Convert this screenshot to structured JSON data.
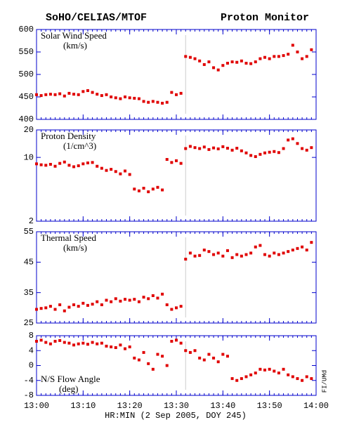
{
  "header": {
    "left": "SoHO/CELIAS/MTOF",
    "right": "Proton Monitor"
  },
  "time_axis": {
    "x": [
      "13:00",
      "13:01",
      "13:02",
      "13:03",
      "13:04",
      "13:05",
      "13:06",
      "13:07",
      "13:08",
      "13:09",
      "13:10",
      "13:11",
      "13:12",
      "13:13",
      "13:14",
      "13:15",
      "13:16",
      "13:17",
      "13:18",
      "13:19",
      "13:20",
      "13:21",
      "13:22",
      "13:23",
      "13:24",
      "13:25",
      "13:26",
      "13:27",
      "13:28",
      "13:29",
      "13:30",
      "13:31",
      "13:32",
      "13:33",
      "13:34",
      "13:35",
      "13:36",
      "13:37",
      "13:38",
      "13:39",
      "13:40",
      "13:41",
      "13:42",
      "13:43",
      "13:44",
      "13:45",
      "13:46",
      "13:47",
      "13:48",
      "13:49",
      "13:50",
      "13:51",
      "13:52",
      "13:53",
      "13:54",
      "13:55",
      "13:56",
      "13:57",
      "13:58",
      "13:59"
    ],
    "xlim": [
      "13:00",
      "14:00"
    ],
    "xticks": [
      "13:00",
      "13:10",
      "13:20",
      "13:30",
      "13:40",
      "13:50",
      "14:00"
    ],
    "xlabel": "HR:MIN (2 Sep 2005, DOY 245)",
    "event_line": "13:32"
  },
  "credit": "FI/UMd",
  "chart_data": [
    {
      "type": "scatter",
      "title": "Solar Wind Speed",
      "units": "(km/s)",
      "color": "#e00000",
      "ylim": [
        400,
        600
      ],
      "yticks": [
        400,
        450,
        500,
        550,
        600
      ],
      "values": [
        455,
        453,
        455,
        456,
        455,
        457,
        452,
        458,
        456,
        455,
        462,
        464,
        460,
        456,
        453,
        455,
        450,
        448,
        446,
        450,
        448,
        447,
        446,
        440,
        438,
        440,
        438,
        436,
        438,
        460,
        455,
        458,
        540,
        538,
        535,
        530,
        522,
        528,
        515,
        510,
        520,
        525,
        528,
        527,
        530,
        525,
        524,
        528,
        535,
        538,
        535,
        540,
        540,
        542,
        545,
        565,
        550,
        535,
        540,
        555
      ]
    },
    {
      "type": "scatter",
      "title": "Proton Density",
      "units": "(1/cm^3)",
      "color": "#e00000",
      "log_scale": true,
      "ylim": [
        2,
        20
      ],
      "yticks": [
        2,
        10,
        20
      ],
      "values": [
        8.5,
        8.3,
        8.2,
        8.4,
        8.0,
        8.6,
        8.9,
        8.2,
        7.9,
        8.1,
        8.5,
        8.7,
        8.8,
        8.0,
        7.6,
        7.2,
        7.4,
        7.0,
        6.6,
        7.1,
        6.5,
        4.5,
        4.3,
        4.6,
        4.2,
        4.5,
        4.7,
        4.4,
        9.5,
        8.8,
        9.2,
        8.6,
        12.5,
        13.2,
        12.8,
        12.5,
        13.0,
        12.2,
        12.7,
        12.4,
        13.1,
        12.6,
        12.0,
        12.6,
        11.8,
        11.2,
        10.5,
        10.2,
        10.8,
        11.2,
        11.4,
        11.6,
        11.3,
        12.5,
        15.5,
        16.0,
        14.2,
        12.5,
        12.0,
        12.8
      ]
    },
    {
      "type": "scatter",
      "title": "Thermal Speed",
      "units": "(km/s)",
      "color": "#e00000",
      "ylim": [
        25,
        55
      ],
      "yticks": [
        25,
        35,
        45,
        55
      ],
      "values": [
        29.5,
        29.8,
        30.0,
        30.5,
        29.5,
        31.0,
        29.0,
        30.2,
        31.0,
        30.5,
        31.5,
        30.8,
        31.2,
        32.0,
        31.0,
        32.5,
        32.0,
        33.0,
        32.2,
        32.8,
        32.5,
        32.8,
        32.0,
        33.5,
        33.0,
        34.0,
        33.2,
        34.5,
        31.0,
        29.5,
        30.0,
        30.5,
        46.0,
        48.0,
        47.0,
        47.2,
        49.0,
        48.5,
        47.5,
        48.0,
        47.0,
        48.8,
        46.5,
        47.5,
        47.0,
        47.5,
        48.0,
        50.0,
        50.5,
        47.5,
        47.0,
        48.0,
        47.5,
        48.0,
        48.5,
        49.0,
        49.5,
        50.0,
        49.0,
        51.5
      ]
    },
    {
      "type": "scatter",
      "title": "N/S Flow Angle",
      "units": "(deg)",
      "color": "#e00000",
      "label_corner": "bottom-left",
      "ylim": [
        -8,
        8
      ],
      "yticks": [
        -8,
        -4,
        0,
        4,
        8
      ],
      "values": [
        6.5,
        6.8,
        6.2,
        5.8,
        6.5,
        6.7,
        6.2,
        6.0,
        5.5,
        5.8,
        6.0,
        5.7,
        6.2,
        5.8,
        6.0,
        5.2,
        5.0,
        4.8,
        5.5,
        4.5,
        5.0,
        2.0,
        1.5,
        3.5,
        0.5,
        -1.0,
        3.0,
        2.5,
        0.0,
        6.5,
        6.8,
        6.0,
        4.0,
        3.5,
        4.0,
        2.0,
        1.5,
        3.0,
        2.0,
        1.0,
        3.0,
        2.5,
        -3.5,
        -4.0,
        -3.5,
        -3.0,
        -2.5,
        -2.0,
        -1.0,
        -1.2,
        -1.0,
        -1.5,
        -2.0,
        -1.0,
        -2.5,
        -3.0,
        -3.5,
        -4.0,
        -3.0,
        -3.5
      ]
    }
  ]
}
